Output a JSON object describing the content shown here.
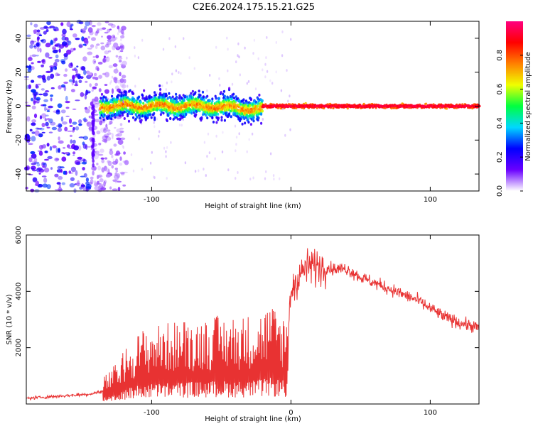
{
  "title": "C2E6.2024.175.15.21.G25",
  "chart_data": [
    {
      "type": "heatmap",
      "xlabel": "Height of straight line (km)",
      "ylabel": "Frequency (Hz)",
      "xlim": [
        -190,
        135
      ],
      "ylim": [
        -50,
        50
      ],
      "x_ticks": [
        -100,
        0,
        100
      ],
      "x_tick_labels": [
        "-100",
        "",
        "100"
      ],
      "y_ticks": [
        -40,
        -20,
        0,
        20,
        40
      ],
      "y_tick_labels": [
        "-40",
        "-20",
        "0",
        "20",
        "40"
      ],
      "colorbar": {
        "label": "Normalized spectral amplitude",
        "range": [
          0,
          1
        ],
        "ticks": [
          0.0,
          0.2,
          0.4,
          0.6,
          0.8
        ],
        "tick_labels": [
          "0.0",
          "0.2",
          "0.4",
          "0.6",
          "0.8"
        ],
        "colormap": [
          "#ffffff",
          "#6a00ff",
          "#0000ff",
          "#00d8ff",
          "#00ff40",
          "#f0ff00",
          "#ff8000",
          "#ff0000",
          "#ff0080"
        ]
      },
      "features": {
        "noise_region_x": [
          -190,
          -130
        ],
        "carrier_line_hz": 0,
        "carrier_start_x": -137,
        "narrow_line_from_x": -20,
        "streak_x": -142,
        "streak_y": [
          -35,
          0
        ]
      },
      "grid": false
    },
    {
      "type": "line",
      "xlabel": "Height of straight line (km)",
      "ylabel": "SNR (10 * v/v)",
      "xlim": [
        -190,
        135
      ],
      "ylim": [
        0,
        6000
      ],
      "x_ticks": [
        -100,
        0,
        100
      ],
      "x_tick_labels": [
        "-100",
        "0",
        "100"
      ],
      "y_ticks": [
        2000,
        4000,
        6000
      ],
      "y_tick_labels": [
        "2000",
        "4000",
        "6000"
      ],
      "color": "#e83232",
      "series": [
        {
          "x": [
            -190,
            -175,
            -160,
            -145,
            -135,
            -125,
            -115,
            -105,
            -95,
            -85,
            -75,
            -65,
            -55,
            -45,
            -35,
            -25,
            -15,
            -8,
            -3,
            0,
            5,
            10,
            15,
            20,
            30,
            40,
            50,
            60,
            70,
            80,
            90,
            100,
            110,
            120,
            135
          ],
          "y": [
            200,
            250,
            300,
            350,
            450,
            700,
            1100,
            1300,
            1350,
            1400,
            1450,
            1450,
            1500,
            1500,
            1500,
            1550,
            1700,
            1600,
            1500,
            4000,
            4500,
            4800,
            4900,
            4900,
            4800,
            4800,
            4500,
            4300,
            4100,
            3900,
            3700,
            3400,
            3100,
            2900,
            2700
          ]
        }
      ],
      "grid": false
    }
  ]
}
